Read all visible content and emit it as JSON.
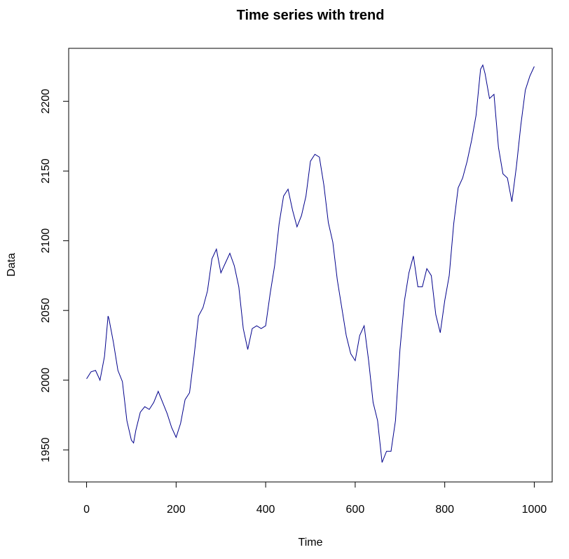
{
  "chart_data": {
    "type": "line",
    "title": "Time series with trend",
    "x_label": "Time",
    "y_label": "Data",
    "x": [
      0,
      10,
      20,
      30,
      40,
      48,
      50,
      60,
      70,
      80,
      90,
      100,
      105,
      110,
      120,
      130,
      140,
      150,
      160,
      170,
      180,
      190,
      200,
      210,
      220,
      230,
      240,
      250,
      260,
      270,
      280,
      290,
      300,
      310,
      320,
      330,
      340,
      350,
      360,
      370,
      380,
      390,
      400,
      410,
      420,
      430,
      440,
      450,
      460,
      470,
      480,
      490,
      500,
      510,
      520,
      530,
      540,
      550,
      560,
      570,
      580,
      590,
      600,
      610,
      620,
      630,
      640,
      650,
      660,
      670,
      680,
      690,
      700,
      710,
      720,
      730,
      740,
      750,
      760,
      770,
      780,
      790,
      800,
      810,
      820,
      830,
      840,
      850,
      860,
      870,
      880,
      885,
      890,
      900,
      910,
      920,
      930,
      940,
      950,
      960,
      970,
      980,
      990,
      1000
    ],
    "series": [
      {
        "name": "Data",
        "color": "#00008b",
        "values": [
          2001,
          2006,
          2007,
          2000,
          2017,
          2046,
          2044,
          2027,
          2007,
          1999,
          1971,
          1957,
          1955,
          1964,
          1977,
          1981,
          1979,
          1984,
          1992,
          1984,
          1976,
          1966,
          1959,
          1969,
          1986,
          1991,
          2017,
          2046,
          2052,
          2064,
          2087,
          2094,
          2077,
          2084,
          2091,
          2082,
          2067,
          2037,
          2022,
          2037,
          2039,
          2037,
          2039,
          2062,
          2082,
          2112,
          2132,
          2137,
          2122,
          2110,
          2118,
          2132,
          2157,
          2162,
          2160,
          2140,
          2113,
          2099,
          2072,
          2052,
          2032,
          2019,
          2014,
          2032,
          2039,
          2014,
          1984,
          1971,
          1941,
          1949,
          1949,
          1971,
          2022,
          2057,
          2077,
          2089,
          2067,
          2067,
          2080,
          2075,
          2047,
          2034,
          2057,
          2075,
          2112,
          2138,
          2145,
          2157,
          2172,
          2190,
          2223,
          2226,
          2220,
          2202,
          2205,
          2167,
          2148,
          2145,
          2128,
          2153,
          2183,
          2208,
          2218,
          2225
        ]
      }
    ],
    "xlim": [
      -40,
      1040
    ],
    "ylim": [
      1927,
      2238
    ],
    "xticks": [
      0,
      200,
      400,
      600,
      800,
      1000
    ],
    "yticks": [
      1950,
      2000,
      2050,
      2100,
      2150,
      2200
    ]
  }
}
